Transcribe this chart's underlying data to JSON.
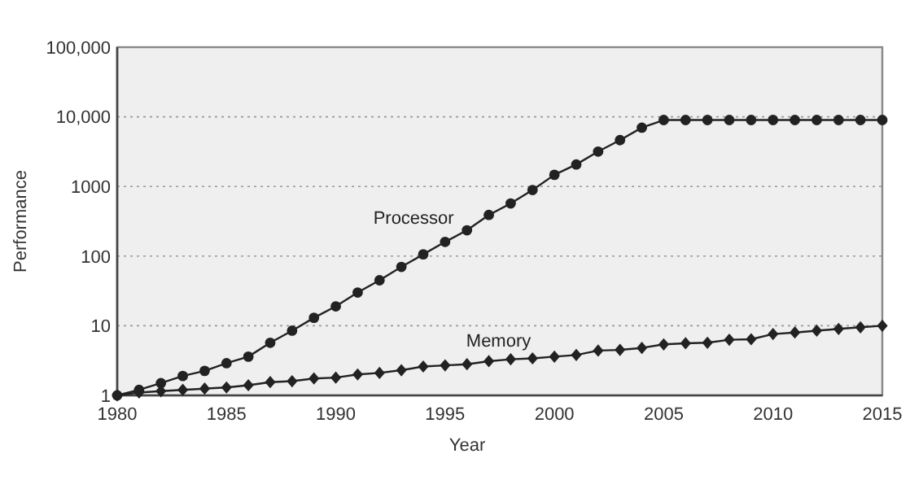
{
  "chart_data": {
    "type": "line",
    "xlabel": "Year",
    "ylabel": "Performance",
    "log": "y",
    "grid": "y",
    "line_style": "solid",
    "x": [
      1980,
      1981,
      1982,
      1983,
      1984,
      1985,
      1986,
      1987,
      1988,
      1989,
      1990,
      1991,
      1992,
      1993,
      1994,
      1995,
      1996,
      1997,
      1998,
      1999,
      2000,
      2001,
      2002,
      2003,
      2004,
      2005,
      2006,
      2007,
      2008,
      2009,
      2010,
      2011,
      2012,
      2013,
      2014,
      2015
    ],
    "xlim": [
      1980,
      2015
    ],
    "xticks": [
      1980,
      1985,
      1990,
      1995,
      2000,
      2005,
      2010,
      2015
    ],
    "ylim": [
      1,
      100000
    ],
    "yticks": [
      1,
      10,
      100,
      1000,
      {
        "value": 10000,
        "label": "10,000"
      },
      {
        "value": 100000,
        "label": "100,000"
      }
    ],
    "series": [
      {
        "name": "Processor",
        "color": "#222222",
        "marker": "circle",
        "values": [
          1,
          1.2,
          1.5,
          1.9,
          2.25,
          2.9,
          3.6,
          5.7,
          8.5,
          13,
          19,
          30,
          45,
          70,
          106,
          160,
          235,
          390,
          570,
          890,
          1470,
          2070,
          3170,
          4630,
          6990,
          9000,
          9000,
          9000,
          9000,
          9000,
          9000,
          9000,
          9000,
          9000,
          9000,
          9000
        ]
      },
      {
        "name": "Memory",
        "color": "#222222",
        "marker": "diamond",
        "values": [
          1,
          1.1,
          1.15,
          1.2,
          1.25,
          1.3,
          1.4,
          1.55,
          1.6,
          1.75,
          1.8,
          2,
          2.1,
          2.3,
          2.6,
          2.7,
          2.8,
          3.1,
          3.3,
          3.4,
          3.6,
          3.8,
          4.4,
          4.5,
          4.8,
          5.4,
          5.6,
          5.7,
          6.3,
          6.4,
          7.6,
          8,
          8.5,
          9,
          9.5,
          10
        ]
      }
    ]
  }
}
